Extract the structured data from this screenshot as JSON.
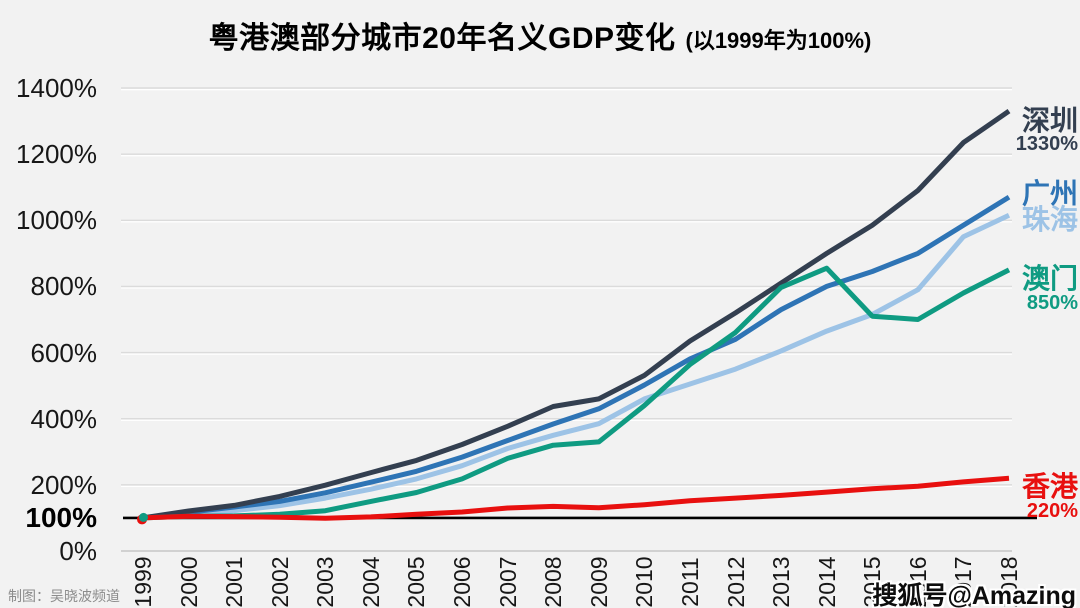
{
  "title": {
    "main": "粤港澳部分城市20年名义GDP变化",
    "suffix": "(以1999年为100%)"
  },
  "footer": {
    "credit": "制图：吴晓波频道",
    "watermark": "搜狐号@Amazing"
  },
  "chart_data": {
    "type": "line",
    "title": "粤港澳部分城市20年名义GDP变化",
    "subtitle": "(以1999年为100%)",
    "xlabel": "",
    "ylabel": "",
    "ylim": [
      0,
      1400
    ],
    "grid": "horizontal",
    "legend_position": "right-of-line-ends",
    "baseline": {
      "value": 100,
      "label": "100%",
      "color": "#000000"
    },
    "x": [
      "1999",
      "2000",
      "2001",
      "2002",
      "2003",
      "2004",
      "2005",
      "2006",
      "2007",
      "2008",
      "2009",
      "2010",
      "2011",
      "2012",
      "2013",
      "2014",
      "2015",
      "2016",
      "2017",
      "2018"
    ],
    "yticks": [
      {
        "label": "1400%",
        "value": 1400,
        "grid": true,
        "bold": false
      },
      {
        "label": "1200%",
        "value": 1200,
        "grid": true,
        "bold": false
      },
      {
        "label": "1000%",
        "value": 1000,
        "grid": true,
        "bold": false
      },
      {
        "label": "800%",
        "value": 800,
        "grid": true,
        "bold": false
      },
      {
        "label": "600%",
        "value": 600,
        "grid": true,
        "bold": false
      },
      {
        "label": "400%",
        "value": 400,
        "grid": true,
        "bold": false
      },
      {
        "label": "200%",
        "value": 200,
        "grid": true,
        "bold": false
      },
      {
        "label": "100%",
        "value": 100,
        "grid": false,
        "bold": true
      },
      {
        "label": "0%",
        "value": 0,
        "grid": false,
        "bold": false
      }
    ],
    "series": [
      {
        "id": "shenzhen",
        "name": "深圳",
        "color": "#333F50",
        "end_value_label": "1330%",
        "values": [
          100,
          121,
          138,
          165,
          199,
          237,
          274,
          322,
          377,
          437,
          460,
          531,
          635,
          720,
          810,
          900,
          985,
          1090,
          1235,
          1330
        ]
      },
      {
        "id": "guangzhou",
        "name": "广州",
        "color": "#2E74B5",
        "end_value_label": null,
        "values": [
          100,
          117,
          133,
          150,
          176,
          208,
          241,
          284,
          334,
          384,
          430,
          502,
          581,
          640,
          730,
          800,
          845,
          900,
          985,
          1070
        ]
      },
      {
        "id": "zhuhai",
        "name": "珠海",
        "color": "#9DC3E6",
        "end_value_label": null,
        "values": [
          100,
          110,
          122,
          137,
          160,
          187,
          218,
          258,
          310,
          350,
          385,
          460,
          505,
          550,
          605,
          665,
          715,
          790,
          950,
          1015
        ]
      },
      {
        "id": "macau",
        "name": "澳门",
        "color": "#0F9B82",
        "end_value_label": "850%",
        "values": [
          100,
          105,
          106,
          111,
          122,
          150,
          177,
          218,
          280,
          320,
          330,
          440,
          564,
          661,
          797,
          855,
          710,
          700,
          780,
          850
        ]
      },
      {
        "id": "hongkong",
        "name": "香港",
        "color": "#E8100F",
        "end_value_label": "220%",
        "values": [
          100,
          105,
          104,
          102,
          99,
          103,
          111,
          118,
          130,
          135,
          131,
          140,
          152,
          160,
          168,
          178,
          188,
          196,
          209,
          220
        ]
      }
    ],
    "colors": {
      "background": "#F2F2F2",
      "gridline": "#DBDBDB",
      "x_axis_line": "#C6C6C6",
      "baseline": "#000000",
      "tick_text": "#171717",
      "credit_text": "#8C8C8C"
    }
  }
}
